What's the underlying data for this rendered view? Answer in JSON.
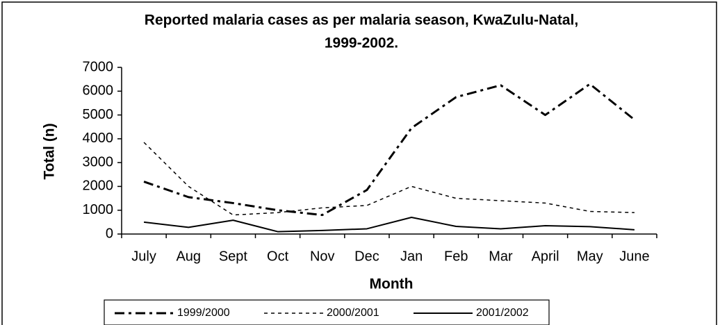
{
  "chart_data": {
    "type": "line",
    "title": [
      "Reported malaria cases as per malaria season, KwaZulu-Natal,",
      "1999-2002."
    ],
    "x_label": "Month",
    "y_label": "Total (n)",
    "categories": [
      "July",
      "Aug",
      "Sept",
      "Oct",
      "Nov",
      "Dec",
      "Jan",
      "Feb",
      "Mar",
      "April",
      "May",
      "June"
    ],
    "series": [
      {
        "name": "1999/2000",
        "color": "#000000",
        "dash": "dash-dot",
        "values": [
          2200,
          1550,
          1300,
          1000,
          800,
          1850,
          4450,
          5750,
          6250,
          5000,
          6300,
          4800
        ]
      },
      {
        "name": "2000/2001",
        "color": "#000000",
        "dash": "dotted",
        "values": [
          3850,
          2000,
          800,
          900,
          1100,
          1200,
          2000,
          1500,
          1400,
          1300,
          950,
          900
        ]
      },
      {
        "name": "2001/2002",
        "color": "#000000",
        "dash": "solid",
        "values": [
          500,
          280,
          580,
          100,
          150,
          220,
          700,
          320,
          220,
          350,
          310,
          180
        ]
      }
    ],
    "ylim": [
      0,
      7000
    ],
    "yticks": [
      0,
      1000,
      2000,
      3000,
      4000,
      5000,
      6000,
      7000
    ],
    "grid": false,
    "legend": "bottom"
  }
}
